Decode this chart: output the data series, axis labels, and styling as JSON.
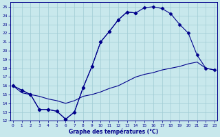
{
  "background_color": "#c8e8ec",
  "grid_color": "#a0ccd4",
  "line_color": "#00008b",
  "xlim": [
    -0.3,
    23.3
  ],
  "ylim": [
    12,
    25.5
  ],
  "ytick_vals": [
    12,
    13,
    14,
    15,
    16,
    17,
    18,
    19,
    20,
    21,
    22,
    23,
    24,
    25
  ],
  "xtick_vals": [
    0,
    1,
    2,
    3,
    4,
    5,
    6,
    7,
    8,
    9,
    10,
    11,
    12,
    13,
    14,
    15,
    16,
    17,
    18,
    19,
    20,
    21,
    22,
    23
  ],
  "xlabel": "Graphe des températures (°C)",
  "curve_upper_x": [
    0,
    1,
    2,
    3,
    4,
    5,
    6,
    7,
    8,
    9,
    10,
    11,
    12,
    13,
    14,
    15,
    16,
    17,
    18,
    19,
    20,
    21,
    22,
    23
  ],
  "curve_upper_y": [
    16.0,
    15.5,
    15.0,
    13.3,
    13.3,
    13.1,
    12.2,
    13.0,
    15.8,
    18.2,
    21.0,
    22.2,
    23.5,
    24.4,
    24.3,
    24.9,
    25.0,
    24.8,
    24.2,
    23.0,
    22.0,
    19.5,
    18.0,
    17.8
  ],
  "curve_mid_x": [
    0,
    1,
    2,
    3,
    4,
    5,
    6,
    7,
    8,
    9,
    10,
    11,
    12,
    13,
    14,
    15,
    16,
    17,
    18,
    19,
    20,
    21,
    22,
    23
  ],
  "curve_mid_y": [
    16.0,
    15.5,
    15.0,
    13.3,
    13.3,
    13.1,
    12.2,
    13.0,
    15.8,
    18.2,
    21.0,
    22.2,
    23.5,
    24.4,
    24.3,
    null,
    null,
    null,
    null,
    null,
    null,
    null,
    null,
    null
  ],
  "curve_lower_x": [
    0,
    1,
    2,
    3,
    4,
    5,
    6,
    7,
    8,
    9,
    10,
    11,
    12,
    13,
    14,
    15,
    16,
    17,
    18,
    19,
    20,
    21,
    22,
    23
  ],
  "curve_lower_y": [
    16.0,
    15.2,
    15.0,
    14.8,
    14.5,
    14.3,
    14.0,
    14.3,
    14.8,
    15.0,
    15.3,
    15.7,
    16.0,
    16.5,
    17.0,
    17.3,
    17.5,
    17.8,
    18.0,
    18.2,
    18.5,
    18.7,
    18.0,
    17.8
  ],
  "marker_style": "D",
  "marker_size": 2.5
}
